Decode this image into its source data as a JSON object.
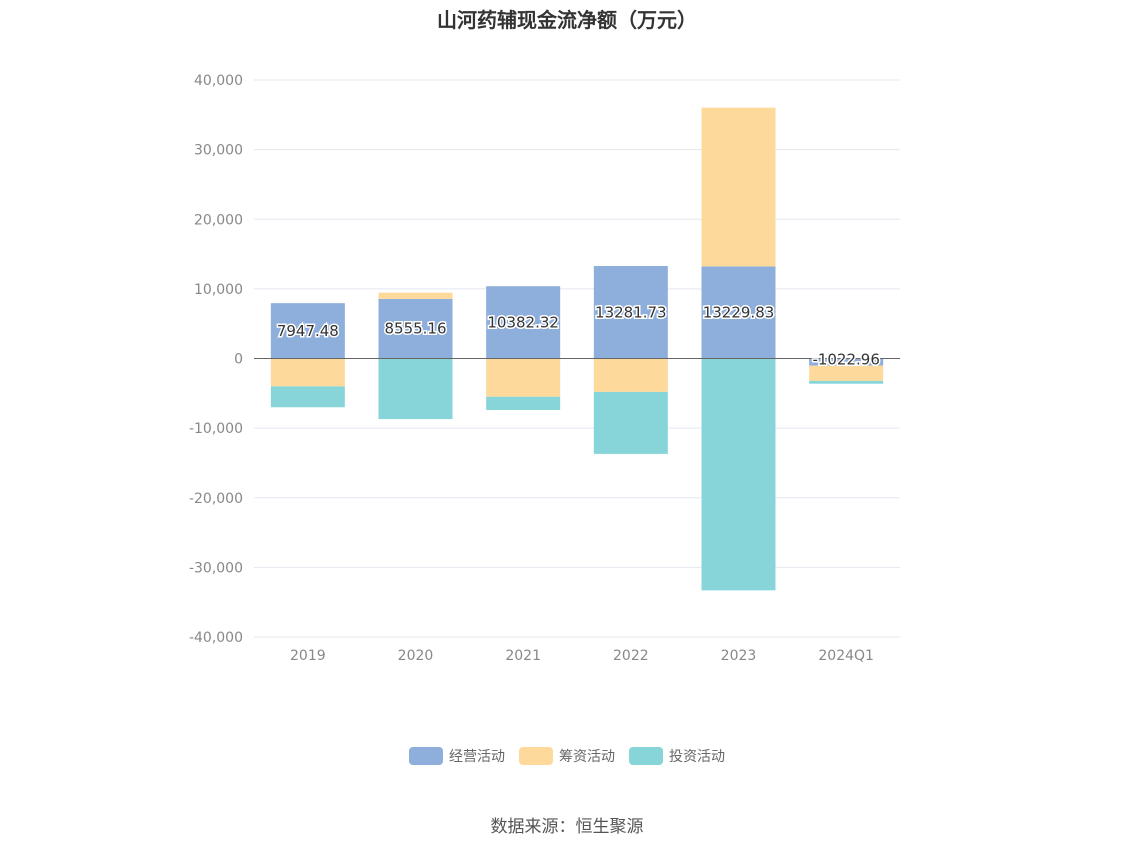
{
  "title": "山河药辅现金流净额（万元）",
  "source": "数据来源：恒生聚源",
  "colors": {
    "operating": "#8eaedb",
    "financing": "#fdd99b",
    "investing": "#87d5d9",
    "grid": "#e4e7ef",
    "zero_line": "#666666"
  },
  "chart_data": {
    "type": "bar",
    "stacked": true,
    "categories": [
      "2019",
      "2020",
      "2021",
      "2022",
      "2023",
      "2024Q1"
    ],
    "ylim": [
      -40000,
      40000
    ],
    "yticks": [
      40000,
      30000,
      20000,
      10000,
      0,
      -10000,
      -20000,
      -30000,
      -40000
    ],
    "ytick_labels": [
      "40,000",
      "30,000",
      "20,000",
      "10,000",
      "0",
      "-10,000",
      "-20,000",
      "-30,000",
      "-40,000"
    ],
    "grid": true,
    "legend_position": "bottom",
    "series": [
      {
        "name": "经营活动",
        "key": "operating",
        "values": [
          7947.48,
          8555.16,
          10382.32,
          13281.73,
          13229.83,
          -1022.96
        ],
        "labels": [
          "7947.48",
          "8555.16",
          "10382.32",
          "13281.73",
          "13229.83",
          "-1022.96"
        ]
      },
      {
        "name": "筹资活动",
        "key": "financing",
        "values": [
          -4000,
          900,
          -5500,
          -4800,
          22800,
          -2200
        ]
      },
      {
        "name": "投资活动",
        "key": "investing",
        "values": [
          -3000,
          -8700,
          -1900,
          -8900,
          -33300,
          -400
        ]
      }
    ]
  }
}
